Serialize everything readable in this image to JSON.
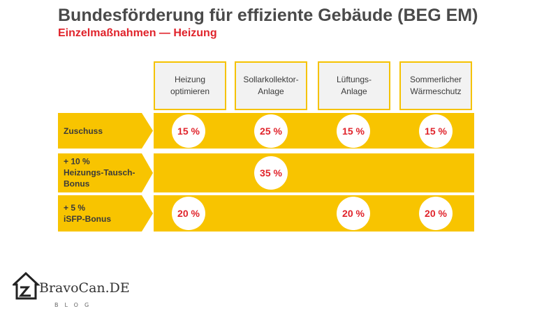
{
  "title": "Bundesförderung für effiziente Gebäude (BEG EM)",
  "subtitle": "Einzelmaßnahmen — Heizung",
  "columns": [
    {
      "label": "Heizung\noptimieren"
    },
    {
      "label": "Sollarkollektor-\nAnlage"
    },
    {
      "label": "Lüftungs-\nAnlage"
    },
    {
      "label": "Sommerlicher\nWärmeschutz"
    }
  ],
  "rows": [
    {
      "label": "Zuschuss",
      "values": [
        "15 %",
        "25 %",
        "15 %",
        "15 %"
      ]
    },
    {
      "label": "+ 10 %\nHeizungs-Tausch-\nBonus",
      "values": [
        "",
        "35 %",
        "",
        ""
      ]
    },
    {
      "label": "+ 5 %\niSFP-Bonus",
      "values": [
        "20 %",
        "",
        "20 %",
        "20 %"
      ]
    }
  ],
  "colors": {
    "accent": "#f8c400",
    "value_red": "#e0232b"
  },
  "logo": {
    "text": "BravoCan.DE",
    "sub": "BLOG",
    "icon": "house-icon"
  }
}
